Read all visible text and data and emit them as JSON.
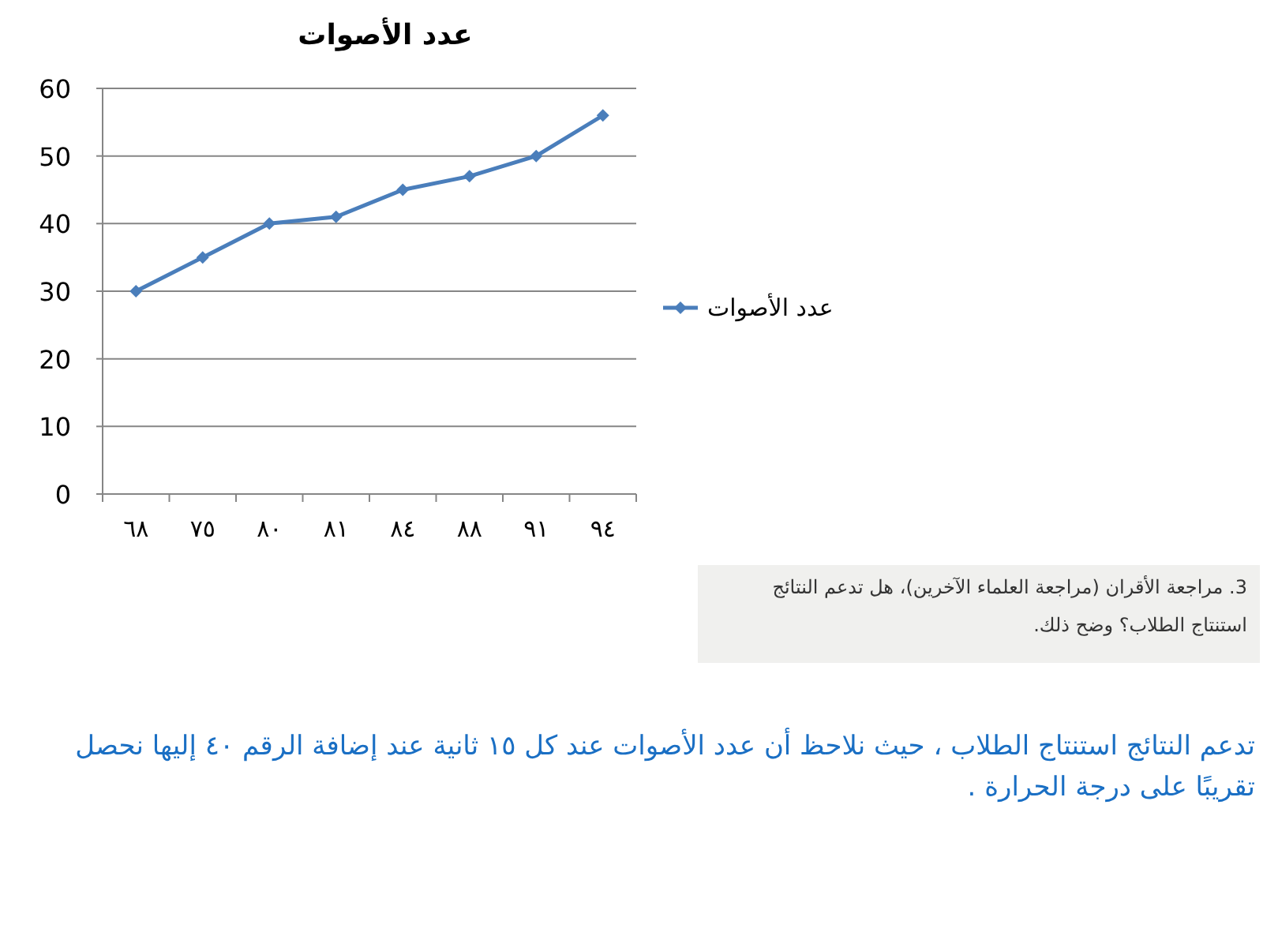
{
  "chart_data": {
    "type": "line",
    "title": "عدد الأصوات",
    "categories": [
      "٦٨",
      "٧٥",
      "٨٠",
      "٨١",
      "٨٤",
      "٨٨",
      "٩١",
      "٩٤"
    ],
    "series": [
      {
        "name": "عدد الأصوات",
        "color": "#4a7ebb",
        "values": [
          30,
          35,
          40,
          41,
          45,
          47,
          50,
          56
        ]
      }
    ],
    "ylim": [
      0,
      60
    ],
    "yticks": [
      0,
      10,
      20,
      30,
      40,
      50,
      60
    ],
    "grid": "y",
    "legend": "right",
    "marker": "diamond",
    "line_style": "solid",
    "annotations": [
      "3. مراجعة الأقران (مراجعة العلماء الآخرين)، هل تدعم النتائج استنتاج الطلاب؟ وضح ذلك.",
      "تدعم النتائج استنتاج الطلاب ، حيث نلاحظ أن عدد الأصوات عند كل ١٥ ثانية  عند إضافة الرقم  ٤٠  إليها نحصل تقريبًا على درجة الحرارة ."
    ]
  }
}
